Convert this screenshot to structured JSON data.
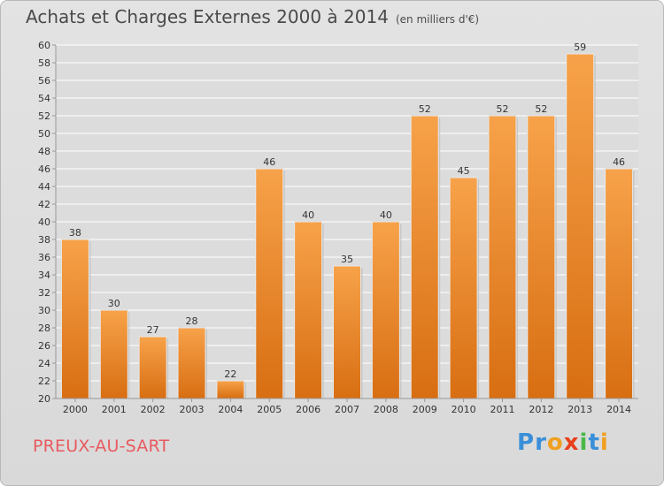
{
  "chart_data": {
    "type": "bar",
    "title": "Achats et Charges Externes 2000 à 2014",
    "subtitle": "(en milliers d'€)",
    "categories": [
      "2000",
      "2001",
      "2002",
      "2003",
      "2004",
      "2005",
      "2006",
      "2007",
      "2008",
      "2009",
      "2010",
      "2011",
      "2012",
      "2013",
      "2014"
    ],
    "values": [
      38,
      30,
      27,
      28,
      22,
      46,
      40,
      35,
      40,
      52,
      45,
      52,
      52,
      59,
      46
    ],
    "ylim": [
      20,
      60
    ],
    "yticks": [
      20,
      22,
      24,
      26,
      28,
      30,
      32,
      34,
      36,
      38,
      40,
      42,
      44,
      46,
      48,
      50,
      52,
      54,
      56,
      58,
      60
    ],
    "grid": true,
    "colors": {
      "bar_top": "#f7a24a",
      "bar_bottom": "#d86e12",
      "grid": "#ffffff",
      "axis": "#999999"
    }
  },
  "footer": {
    "commune": "PREUX-AU-SART",
    "logo": {
      "letters": [
        "P",
        "r",
        "o",
        "x",
        "i",
        "t",
        "i"
      ],
      "colors": [
        "#3a8fd8",
        "#3a8fd8",
        "#f0a020",
        "#e8401c",
        "#4ab848",
        "#3a8fd8",
        "#f0a020"
      ]
    }
  }
}
